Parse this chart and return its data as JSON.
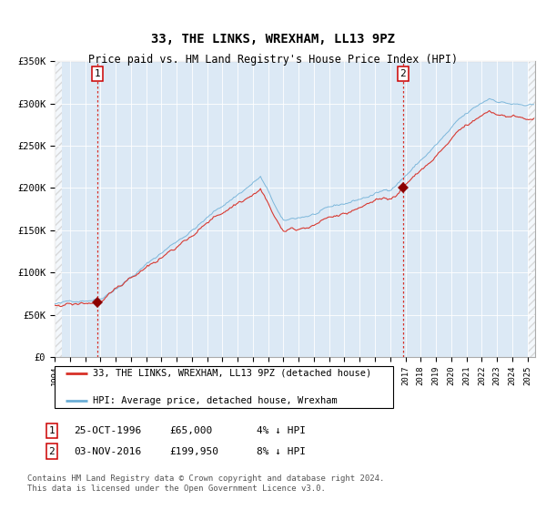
{
  "title": "33, THE LINKS, WREXHAM, LL13 9PZ",
  "subtitle": "Price paid vs. HM Land Registry's House Price Index (HPI)",
  "ylim": [
    0,
    350000
  ],
  "yticks": [
    0,
    50000,
    100000,
    150000,
    200000,
    250000,
    300000,
    350000
  ],
  "ytick_labels": [
    "£0",
    "£50K",
    "£100K",
    "£150K",
    "£200K",
    "£250K",
    "£300K",
    "£350K"
  ],
  "bg_color": "#dce9f5",
  "hpi_color": "#6baed6",
  "price_color": "#d73027",
  "vline_color": "#d73027",
  "marker_color": "#8b0000",
  "sale1_year": 1996.82,
  "sale1_price": 65000,
  "sale2_year": 2016.84,
  "sale2_price": 199950,
  "legend_line1": "33, THE LINKS, WREXHAM, LL13 9PZ (detached house)",
  "legend_line2": "HPI: Average price, detached house, Wrexham",
  "footnote1": "Contains HM Land Registry data © Crown copyright and database right 2024.",
  "footnote2": "This data is licensed under the Open Government Licence v3.0.",
  "seed": 42
}
